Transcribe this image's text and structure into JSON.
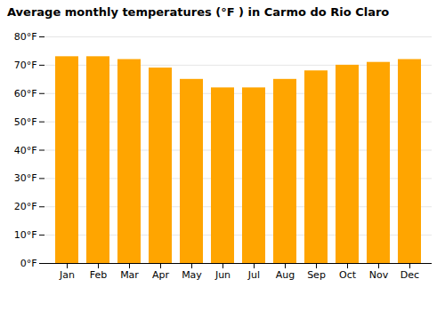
{
  "chart_data": {
    "type": "bar",
    "title": "Average monthly temperatures (°F ) in Carmo do Rio Claro",
    "categories": [
      "Jan",
      "Feb",
      "Mar",
      "Apr",
      "May",
      "Jun",
      "Jul",
      "Aug",
      "Sep",
      "Oct",
      "Nov",
      "Dec"
    ],
    "values": [
      73,
      73,
      72,
      69,
      65,
      62,
      62,
      65,
      68,
      70,
      71,
      72
    ],
    "color": "#FFA500",
    "ylim": [
      0,
      80
    ],
    "yticks": [
      {
        "value": 0,
        "label": "0°F"
      },
      {
        "value": 10,
        "label": "10°F"
      },
      {
        "value": 20,
        "label": "20°F"
      },
      {
        "value": 30,
        "label": "30°F"
      },
      {
        "value": 40,
        "label": "40°F"
      },
      {
        "value": 50,
        "label": "50°F"
      },
      {
        "value": 60,
        "label": "60°F"
      },
      {
        "value": 70,
        "label": "70°F"
      },
      {
        "value": 80,
        "label": "80°F"
      }
    ],
    "grid": true
  }
}
